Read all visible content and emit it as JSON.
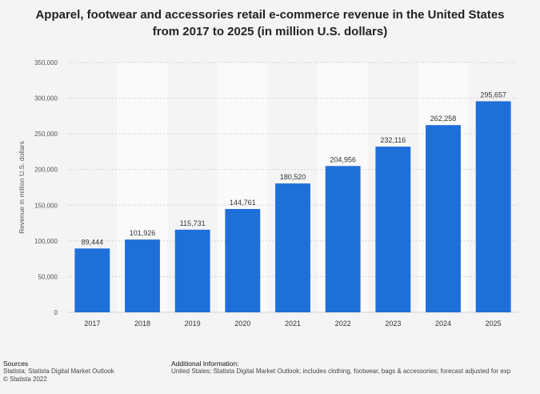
{
  "chart_data": {
    "type": "bar",
    "title": [
      "Apparel, footwear and accessories retail e-commerce revenue in the United States",
      "from 2017 to 2025 (in million U.S. dollars)"
    ],
    "ylabel": "Revenue in million U.S. dollars",
    "categories": [
      "2017",
      "2018",
      "2019",
      "2020",
      "2021",
      "2022",
      "2023",
      "2024",
      "2025"
    ],
    "values": [
      89444,
      101926,
      115731,
      144761,
      180520,
      204956,
      232116,
      262258,
      295657
    ],
    "value_labels": [
      "89,444",
      "101,926",
      "115,731",
      "144,761",
      "180,520",
      "204,956",
      "232,116",
      "262,258",
      "295,657"
    ],
    "ylim": [
      0,
      350000
    ],
    "yticks": [
      0,
      50000,
      100000,
      150000,
      200000,
      250000,
      300000,
      350000
    ],
    "ytick_labels": [
      "0",
      "50,000",
      "100,000",
      "150,000",
      "200,000",
      "250,000",
      "300,000",
      "350,000"
    ],
    "bar_color": "#1f6fd9",
    "grid": true
  },
  "footer": {
    "sources_heading": "Sources",
    "sources_line1": "Statista; Statista Digital Market Outlook",
    "sources_line2": "© Statista 2022",
    "additional_heading": "Additional Information:",
    "additional_text": "United States; Statista Digital Market Outlook; includes clothing, footwear, bags & accessories; forecast adjusted for exp"
  }
}
